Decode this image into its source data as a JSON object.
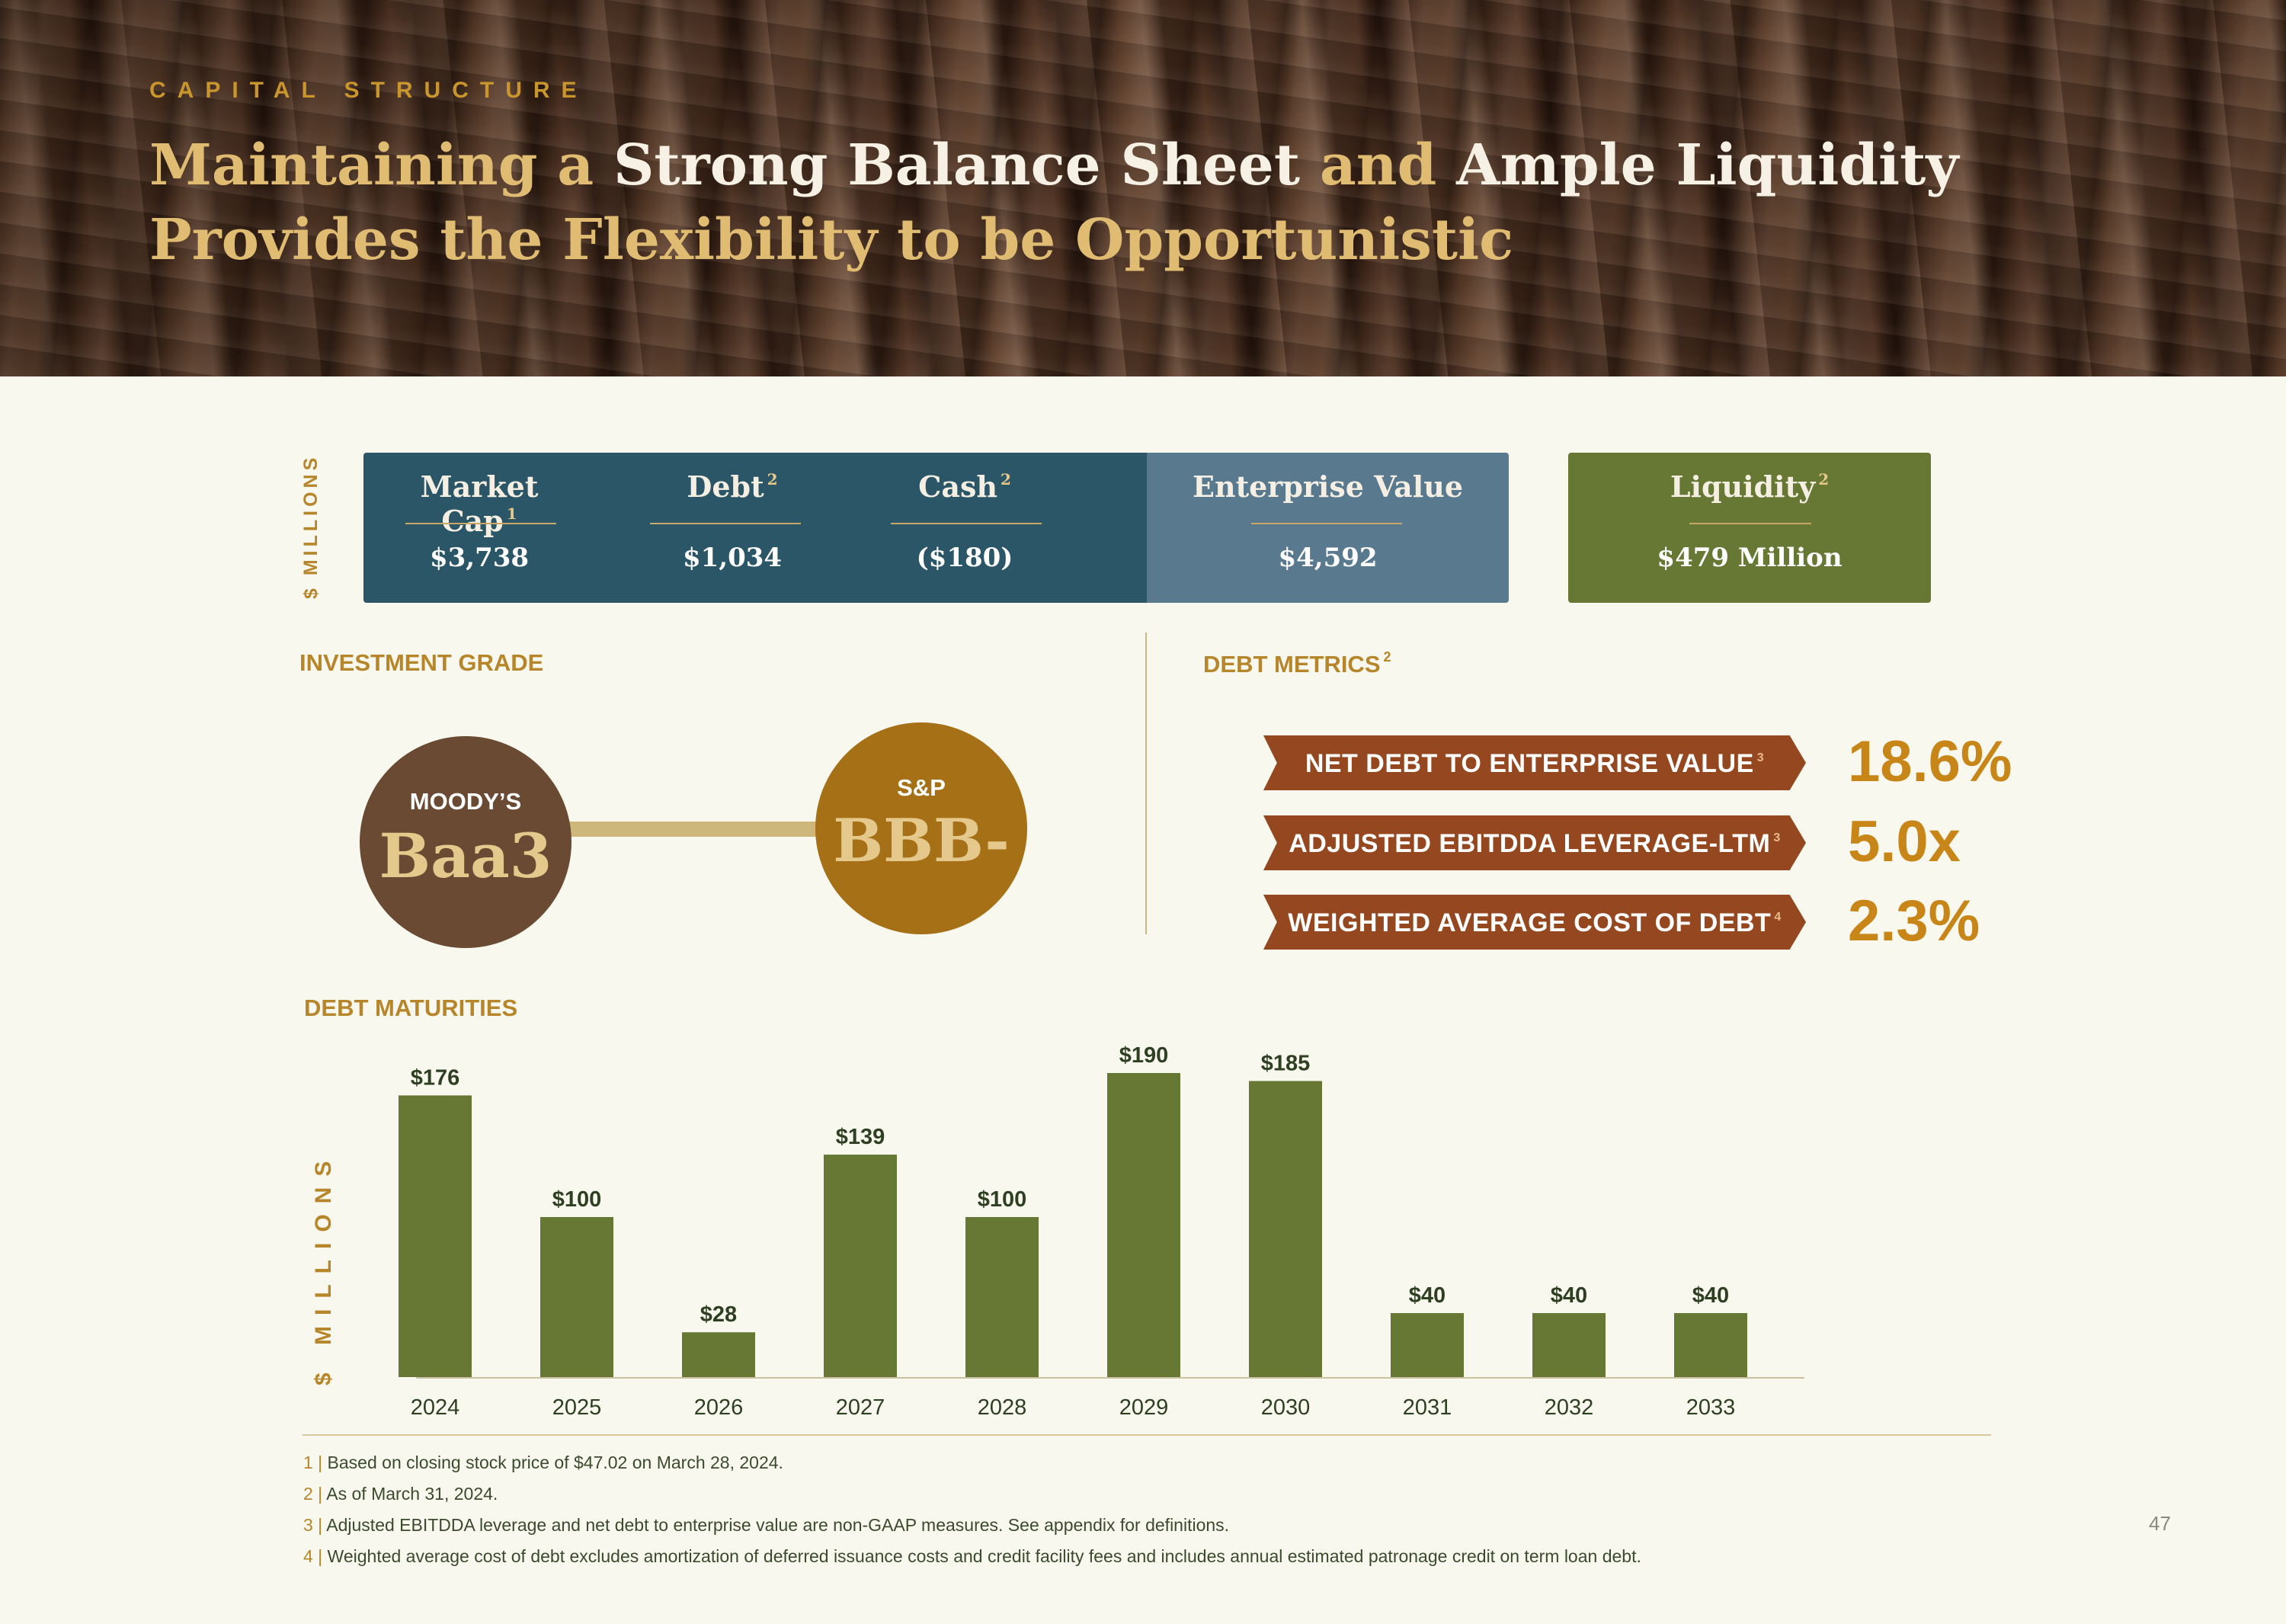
{
  "header": {
    "eyebrow": "CAPITAL STRUCTURE",
    "title_parts": [
      "Maintaining a ",
      "Strong Balance Sheet",
      " and ",
      "Ample Liquidity"
    ],
    "title_line2": "Provides the Flexibility to be Opportunistic"
  },
  "summary": {
    "axis_label": "$ MILLIONS",
    "items": [
      {
        "label": "Market Cap",
        "sup": "1",
        "value": "$3,738"
      },
      {
        "label": "Debt",
        "sup": "2",
        "value": "$1,034"
      },
      {
        "label": "Cash",
        "sup": "2",
        "value": "($180)"
      },
      {
        "label": "Enterprise Value",
        "sup": "",
        "value": "$4,592"
      },
      {
        "label": "Liquidity",
        "sup": "2",
        "value": "$479 Million"
      }
    ]
  },
  "investment_grade": {
    "heading": "INVESTMENT GRADE",
    "ratings": [
      {
        "agency": "MOODY’S",
        "rating": "Baa3"
      },
      {
        "agency": "S&P",
        "rating": "BBB-"
      }
    ]
  },
  "debt_metrics": {
    "heading": "DEBT METRICS",
    "heading_sup": "2",
    "items": [
      {
        "label": "NET DEBT TO ENTERPRISE VALUE",
        "sup": "3",
        "value": "18.6%"
      },
      {
        "label": "ADJUSTED  EBITDDA  LEVERAGE-LTM",
        "sup": "3",
        "value": "5.0x"
      },
      {
        "label": "WEIGHTED AVERAGE COST OF DEBT",
        "sup": "4",
        "value": "2.3%"
      }
    ]
  },
  "chart_data": {
    "type": "bar",
    "title": "DEBT MATURITIES",
    "ylabel": "$ MILLIONS",
    "xlabel": "",
    "categories": [
      "2024",
      "2025",
      "2026",
      "2027",
      "2028",
      "2029",
      "2030",
      "2031",
      "2032",
      "2033"
    ],
    "values": [
      176,
      100,
      28,
      139,
      100,
      190,
      185,
      40,
      40,
      40
    ],
    "data_labels": [
      "$176",
      "$100",
      "$28",
      "$139",
      "$100",
      "$190",
      "$185",
      "$40",
      "$40",
      "$40"
    ],
    "ylim": [
      0,
      200
    ],
    "grid": false,
    "bar_color": "#667834"
  },
  "footnotes": [
    {
      "n": "1 |",
      "text": " Based on closing stock price of $47.02 on March 28, 2024."
    },
    {
      "n": "2 |",
      "text": " As of March 31, 2024."
    },
    {
      "n": "3 |",
      "text": " Adjusted EBITDDA leverage and net debt to enterprise value are non-GAAP measures. See appendix for definitions."
    },
    {
      "n": "4 |",
      "text": " Weighted average cost of debt excludes amortization of deferred issuance costs and credit facility fees and includes annual estimated patronage credit on term loan debt."
    }
  ],
  "page_number": "47",
  "colors": {
    "gold": "#c9952d",
    "navy": "#2b5668",
    "steel": "#59798f",
    "olive": "#667834",
    "rust": "#95471f",
    "brown": "#6a4a33",
    "amber": "#a67016"
  }
}
